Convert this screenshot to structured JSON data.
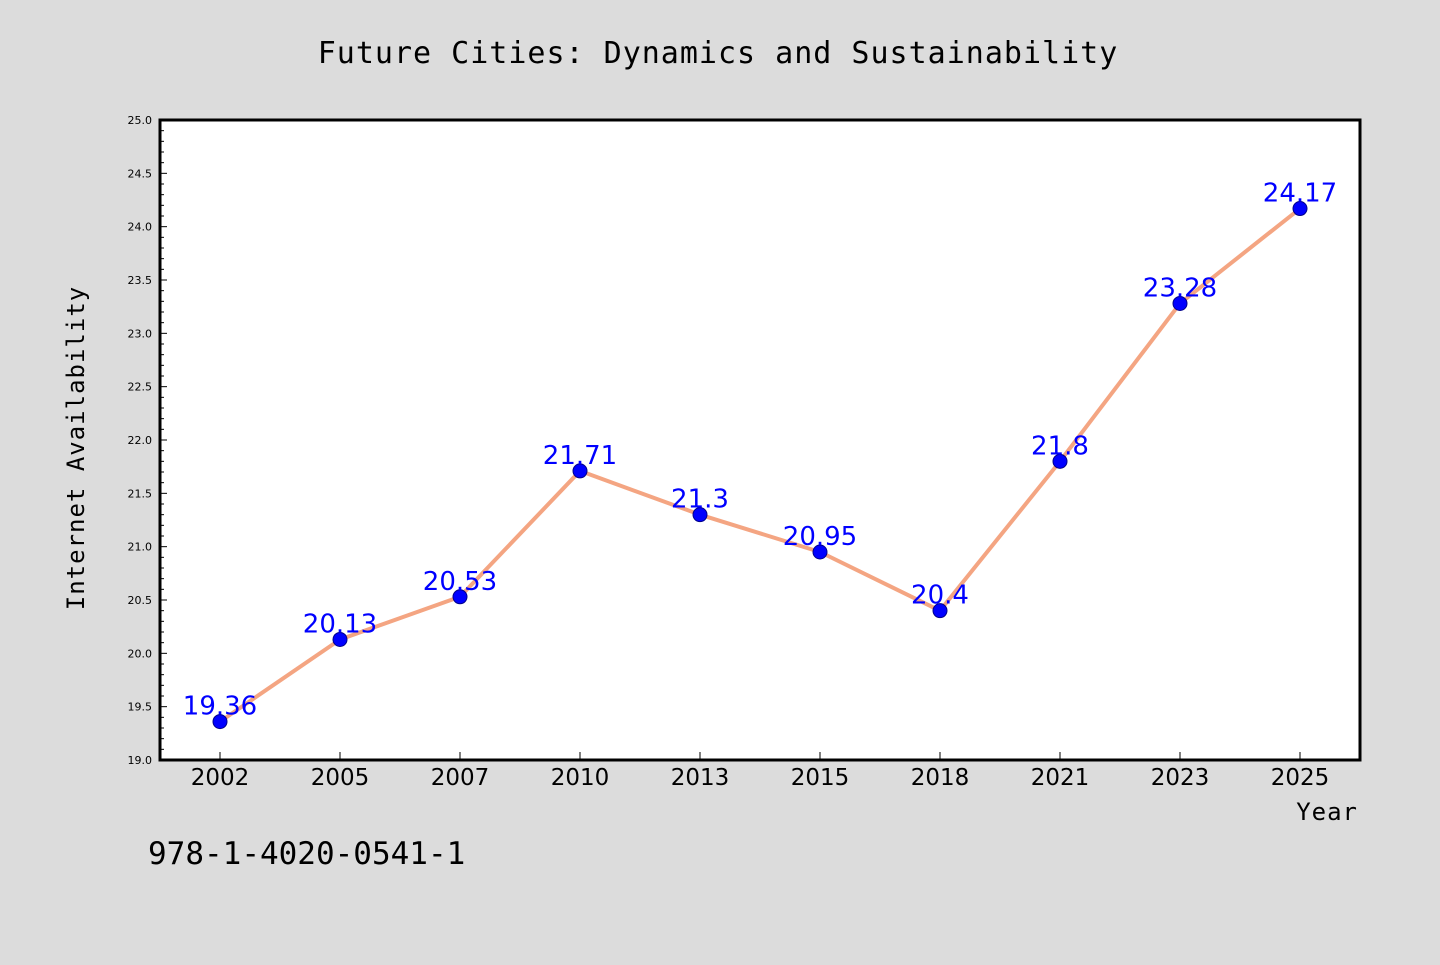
{
  "chart_data": {
    "type": "line",
    "title": "Future Cities: Dynamics and Sustainability",
    "xlabel": "Year",
    "ylabel": "Internet Availability",
    "categories": [
      "2002",
      "2005",
      "2007",
      "2010",
      "2013",
      "2015",
      "2018",
      "2021",
      "2023",
      "2025"
    ],
    "series": [
      {
        "values": [
          19.36,
          20.13,
          20.53,
          21.71,
          21.3,
          20.95,
          20.4,
          21.8,
          23.28,
          24.17
        ],
        "labels": [
          "19.36",
          "20.13",
          "20.53",
          "21.71",
          "21.3",
          "20.95",
          "20.4",
          "21.8",
          "23.28",
          "24.17"
        ],
        "line_color": "#f4a582",
        "marker_color": "#0000ff",
        "label_color": "#0000ff"
      }
    ],
    "ylim": [
      19.0,
      25.0
    ],
    "yticks": [
      "19.0",
      "19.5",
      "20.0",
      "20.5",
      "21.0",
      "21.5",
      "22.0",
      "22.5",
      "23.0",
      "23.5",
      "24.0",
      "24.5",
      "25.0"
    ],
    "grid": false,
    "legend": "none",
    "footnote": "978-1-4020-0541-1"
  },
  "colors": {
    "background": "#dcdcdc",
    "plot_background": "#ffffff",
    "axis": "#000000"
  }
}
